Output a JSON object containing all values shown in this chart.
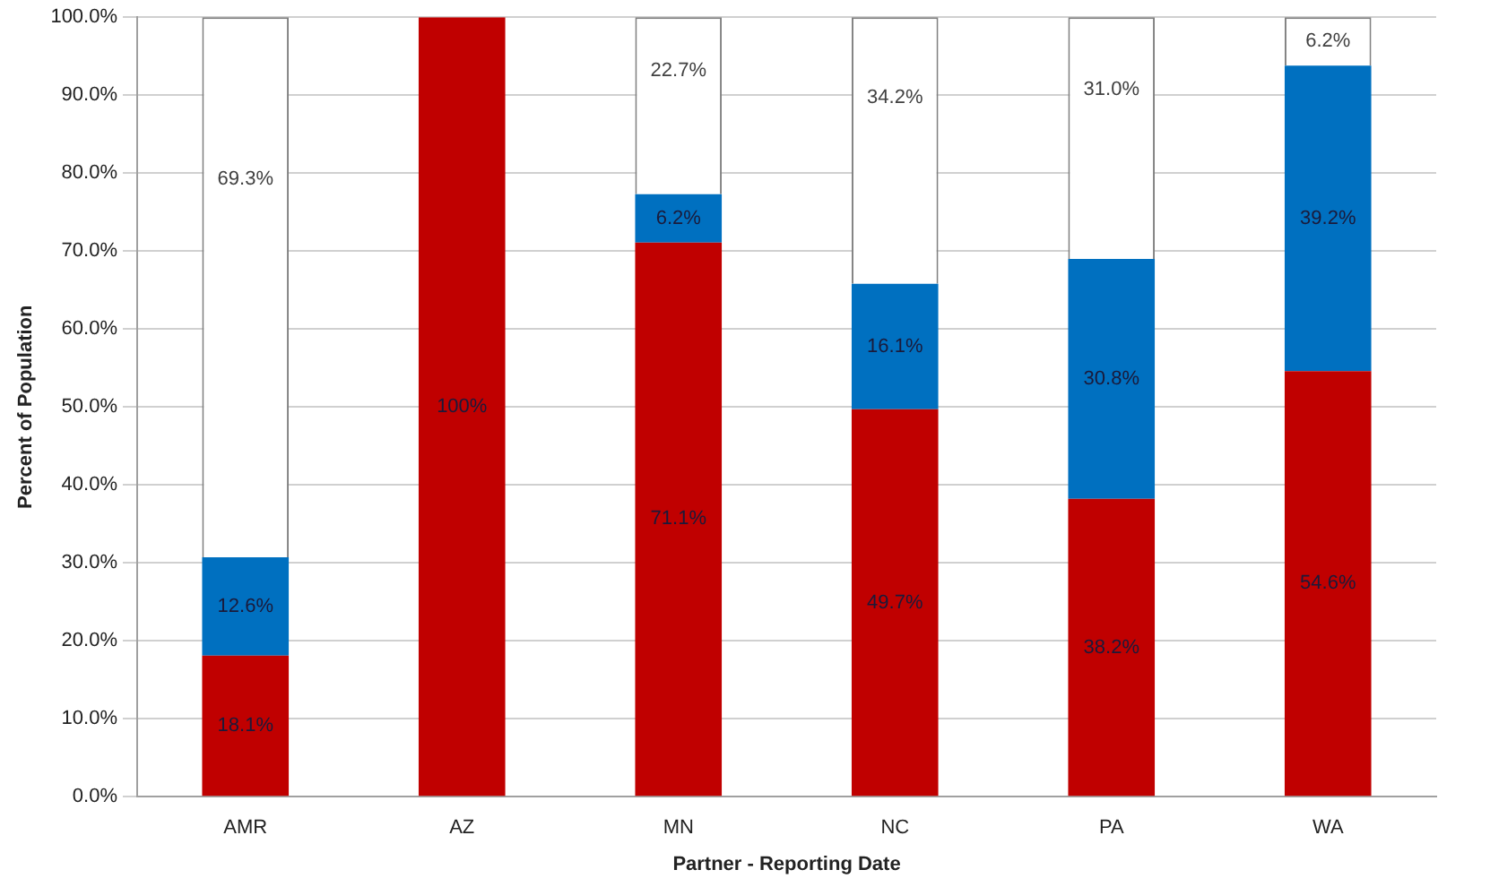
{
  "chart_data": {
    "type": "bar",
    "stacked": true,
    "xlabel": "Partner - Reporting Date",
    "ylabel": "Percent of Population",
    "categories": [
      "AMR",
      "AZ",
      "MN",
      "NC",
      "PA",
      "WA"
    ],
    "series": [
      {
        "color": "#c00000",
        "values": [
          18.1,
          100,
          71.1,
          49.7,
          38.2,
          54.6
        ],
        "value_labels": [
          "18.1%",
          "100%",
          "71.1%",
          "49.7%",
          "38.2%",
          "54.6%"
        ]
      },
      {
        "color": "#0070c0",
        "values": [
          12.6,
          0,
          6.2,
          16.1,
          30.8,
          39.2
        ],
        "value_labels": [
          "12.6%",
          null,
          "6.2%",
          "16.1%",
          "30.8%",
          "39.2%"
        ]
      },
      {
        "color": "#ffffff",
        "values": [
          69.3,
          0,
          22.7,
          34.2,
          31.0,
          6.2
        ],
        "value_labels": [
          "69.3%",
          null,
          "22.7%",
          "34.2%",
          "31.0%",
          "6.2%"
        ]
      }
    ],
    "ylim": [
      0,
      100
    ],
    "yticks": [
      {
        "value": 0,
        "label": "0.0%"
      },
      {
        "value": 10,
        "label": "10.0%"
      },
      {
        "value": 20,
        "label": "20.0%"
      },
      {
        "value": 30,
        "label": "30.0%"
      },
      {
        "value": 40,
        "label": "40.0%"
      },
      {
        "value": 50,
        "label": "50.0%"
      },
      {
        "value": 60,
        "label": "60.0%"
      },
      {
        "value": 70,
        "label": "70.0%"
      },
      {
        "value": 80,
        "label": "80.0%"
      },
      {
        "value": 90,
        "label": "90.0%"
      },
      {
        "value": 100,
        "label": "100.0%"
      }
    ],
    "grid": "y",
    "legend": false
  }
}
